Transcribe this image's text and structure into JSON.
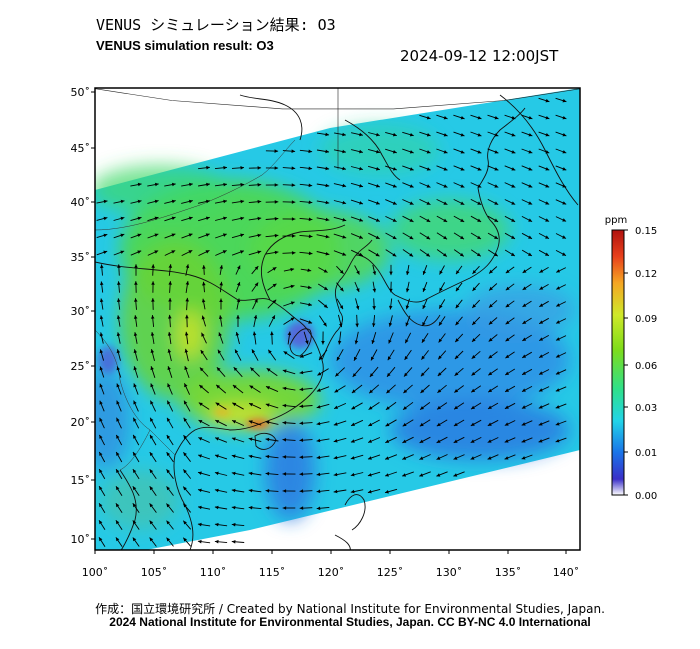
{
  "header": {
    "title_jp": "VENUS シミュレーション結果: O3",
    "title_en": "VENUS simulation result: O3",
    "timestamp": "2024-09-12 12:00JST"
  },
  "map": {
    "lat_labels": [
      "50˚",
      "45˚",
      "40˚",
      "35˚",
      "30˚",
      "25˚",
      "20˚",
      "15˚",
      "10˚"
    ],
    "lon_labels": [
      "100˚",
      "105˚",
      "110˚",
      "115˚",
      "120˚",
      "125˚",
      "130˚",
      "135˚",
      "140˚"
    ],
    "lon_range": [
      100,
      141
    ],
    "lat_range": [
      9,
      50.5
    ]
  },
  "colorbar": {
    "unit": "ppm",
    "tick_labels": [
      "0.15",
      "0.12",
      "0.09",
      "0.06",
      "0.03",
      "0.01",
      "0.00"
    ],
    "colors": [
      "#ffffff",
      "#3a2fc8",
      "#1a73e8",
      "#22d4e8",
      "#2fe08a",
      "#7fdc1a",
      "#cfe82a",
      "#f5a623",
      "#e8401c",
      "#b0120f"
    ]
  },
  "credits": {
    "line1": "作成：国立環境研究所 / Created by National Institute for Environmental Studies, Japan.",
    "line2": "2024 National Institute for Environmental Studies, Japan. CC BY-NC 4.0 International"
  }
}
